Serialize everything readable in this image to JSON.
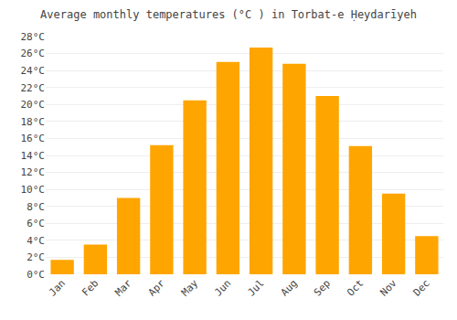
{
  "chart_data": {
    "type": "bar",
    "title": "Average monthly temperatures (°C ) in Torbat-e Ḥeydarīyeh",
    "categories": [
      "Jan",
      "Feb",
      "Mar",
      "Apr",
      "May",
      "Jun",
      "Jul",
      "Aug",
      "Sep",
      "Oct",
      "Nov",
      "Dec"
    ],
    "values": [
      1.7,
      3.5,
      9.0,
      15.2,
      20.5,
      25.0,
      26.7,
      24.8,
      21.0,
      15.1,
      9.5,
      4.5
    ],
    "color": "#FFA500",
    "ylim": [
      0,
      28
    ],
    "yticks": [
      {
        "value": 0,
        "label": "0°C"
      },
      {
        "value": 2,
        "label": "2°C"
      },
      {
        "value": 4,
        "label": "4°C"
      },
      {
        "value": 6,
        "label": "6°C"
      },
      {
        "value": 8,
        "label": "8°C"
      },
      {
        "value": 10,
        "label": "10°C"
      },
      {
        "value": 12,
        "label": "12°C"
      },
      {
        "value": 14,
        "label": "14°C"
      },
      {
        "value": 16,
        "label": "16°C"
      },
      {
        "value": 18,
        "label": "18°C"
      },
      {
        "value": 20,
        "label": "20°C"
      },
      {
        "value": 22,
        "label": "22°C"
      },
      {
        "value": 24,
        "label": "24°C"
      },
      {
        "value": 26,
        "label": "26°C"
      },
      {
        "value": 28,
        "label": "28°C"
      }
    ],
    "grid": true
  }
}
